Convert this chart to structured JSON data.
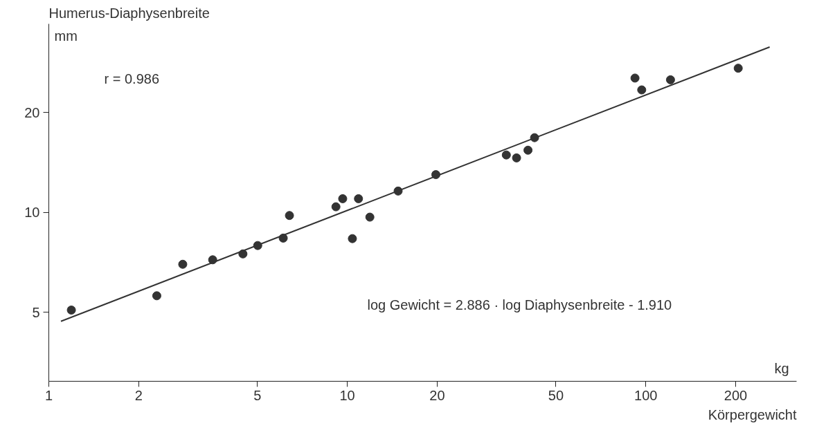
{
  "chart_data": {
    "type": "scatter",
    "ylabel": "Humerus-Diaphysenbreite",
    "xlabel": "Körpergewicht",
    "log": "xy",
    "xlim": [
      1,
      320
    ],
    "ylim": [
      3.1,
      37
    ],
    "xticks": [
      1,
      2,
      5,
      10,
      20,
      50,
      100,
      200
    ],
    "yticks": [
      5,
      10,
      20
    ],
    "grid": false,
    "marker": "circle",
    "annotations": [
      "r = 0.986",
      "log  Gewicht = 2.886 · log  Diaphysenbreite - 1.910",
      "mm",
      "kg"
    ],
    "series": [
      {
        "color": "#333333",
        "x": [
          1.19,
          2.3,
          2.81,
          3.54,
          4.47,
          5.01,
          6.1,
          6.4,
          9.16,
          9.65,
          10.4,
          10.9,
          11.9,
          14.8,
          19.8,
          34.1,
          36.9,
          40.3,
          42.4,
          92,
          96.9,
          121,
          204
        ],
        "values": [
          5.08,
          5.61,
          6.98,
          7.2,
          7.5,
          7.95,
          8.37,
          9.79,
          10.4,
          11.0,
          8.34,
          11.0,
          9.68,
          11.6,
          13.0,
          14.9,
          14.6,
          15.4,
          16.8,
          25.4,
          23.4,
          25.1,
          27.2
        ]
      },
      {
        "type": "line",
        "marker": "none",
        "color": "#333333",
        "x": [
          1.098,
          260
        ],
        "values": [
          4.7,
          31.5
        ]
      }
    ]
  }
}
